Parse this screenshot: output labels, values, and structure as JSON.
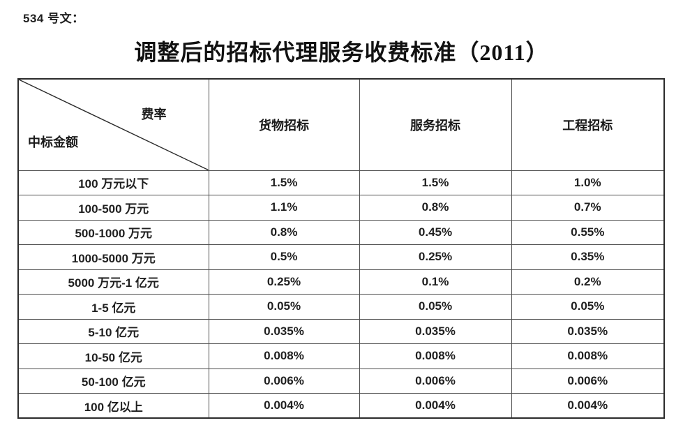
{
  "page": {
    "doc_number": "534 号文：",
    "title": "调整后的招标代理服务收费标准（2011）"
  },
  "table": {
    "corner": {
      "top_right": "费率",
      "bottom_left": "中标金额"
    },
    "columns": [
      "货物招标",
      "服务招标",
      "工程招标"
    ],
    "rows": [
      {
        "amount": "100 万元以下",
        "values": [
          "1.5%",
          "1.5%",
          "1.0%"
        ]
      },
      {
        "amount": "100-500 万元",
        "values": [
          "1.1%",
          "0.8%",
          "0.7%"
        ]
      },
      {
        "amount": "500-1000 万元",
        "values": [
          "0.8%",
          "0.45%",
          "0.55%"
        ]
      },
      {
        "amount": "1000-5000 万元",
        "values": [
          "0.5%",
          "0.25%",
          "0.35%"
        ]
      },
      {
        "amount": "5000 万元-1 亿元",
        "values": [
          "0.25%",
          "0.1%",
          "0.2%"
        ]
      },
      {
        "amount": "1-5 亿元",
        "values": [
          "0.05%",
          "0.05%",
          "0.05%"
        ]
      },
      {
        "amount": "5-10 亿元",
        "values": [
          "0.035%",
          "0.035%",
          "0.035%"
        ]
      },
      {
        "amount": "10-50 亿元",
        "values": [
          "0.008%",
          "0.008%",
          "0.008%"
        ]
      },
      {
        "amount": "50-100 亿元",
        "values": [
          "0.006%",
          "0.006%",
          "0.006%"
        ]
      },
      {
        "amount": "100 亿以上",
        "values": [
          "0.004%",
          "0.004%",
          "0.004%"
        ]
      }
    ],
    "colors": {
      "text": "#1f1f1f",
      "inner_border": "#4d4d4d",
      "outer_border": "#2b2b2b",
      "background": "#ffffff"
    }
  }
}
